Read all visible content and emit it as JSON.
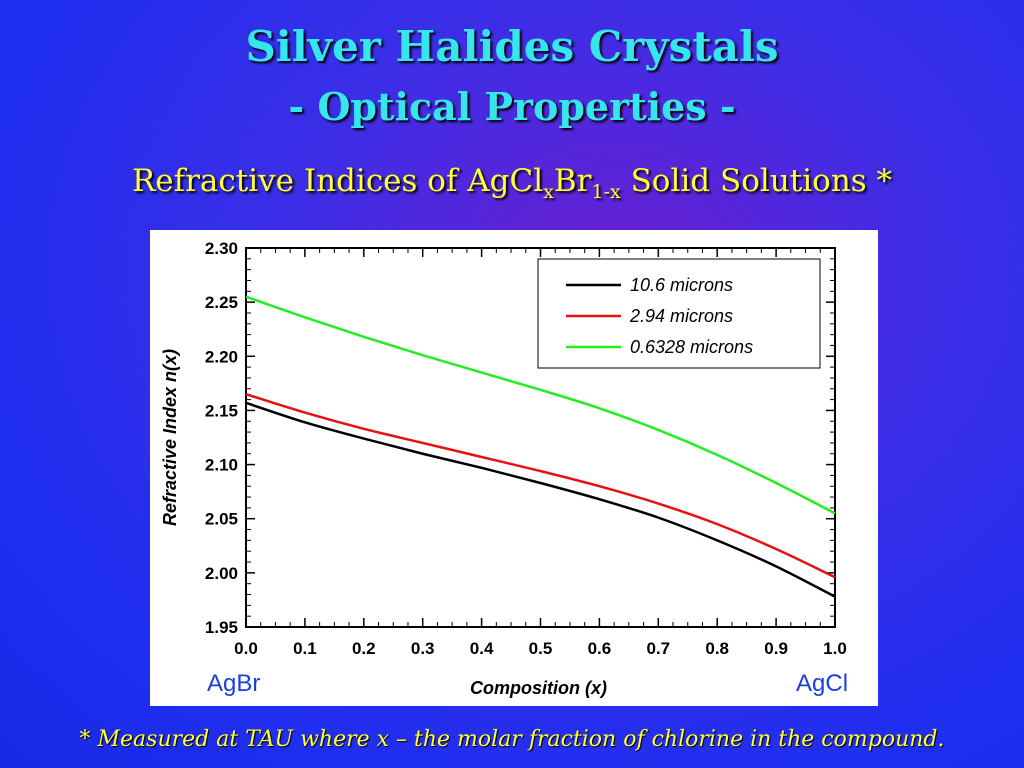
{
  "slide": {
    "title_line1": "Silver Halides Crystals",
    "title_line2": "- Optical Properties -",
    "subtitle_pre": "Refractive Indices of AgCl",
    "subtitle_sub1": "x",
    "subtitle_mid": "Br",
    "subtitle_sub2": "1-x",
    "subtitle_post": " Solid Solutions *",
    "footnote": "* Measured at TAU where x – the molar fraction of chlorine in the compound.",
    "left_end_label": "AgBr",
    "right_end_label": "AgCl"
  },
  "chart_data": {
    "type": "line",
    "xlabel": "Composition (x)",
    "ylabel": "Refractive Index n(x)",
    "xlim": [
      0.0,
      1.0
    ],
    "ylim": [
      1.95,
      2.3
    ],
    "xticks": [
      "0.0",
      "0.1",
      "0.2",
      "0.3",
      "0.4",
      "0.5",
      "0.6",
      "0.7",
      "0.8",
      "0.9",
      "1.0"
    ],
    "yticks": [
      "1.95",
      "2.00",
      "2.05",
      "2.10",
      "2.15",
      "2.20",
      "2.25",
      "2.30"
    ],
    "legend_position": "top-right",
    "grid": false,
    "x": [
      0.0,
      0.1,
      0.2,
      0.3,
      0.4,
      0.5,
      0.6,
      0.7,
      0.8,
      0.9,
      1.0
    ],
    "series": [
      {
        "name": "10.6 microns",
        "color": "#000000",
        "values": [
          2.157,
          2.139,
          2.124,
          2.11,
          2.097,
          2.083,
          2.068,
          2.051,
          2.03,
          2.006,
          1.978
        ]
      },
      {
        "name": "2.94 microns",
        "color": "#e81010",
        "values": [
          2.165,
          2.148,
          2.133,
          2.12,
          2.107,
          2.094,
          2.08,
          2.064,
          2.045,
          2.022,
          1.996
        ]
      },
      {
        "name": "0.6328 microns",
        "color": "#22ee22",
        "values": [
          2.255,
          2.236,
          2.218,
          2.201,
          2.185,
          2.169,
          2.152,
          2.132,
          2.109,
          2.083,
          2.055
        ]
      }
    ]
  }
}
